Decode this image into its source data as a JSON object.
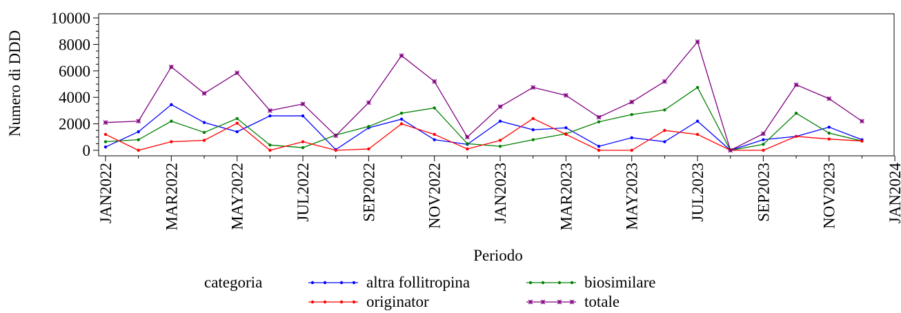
{
  "chart_data": {
    "type": "line",
    "xlabel": "Periodo",
    "ylabel": "Numero di DDD",
    "ylim": [
      0,
      10000
    ],
    "yticks": [
      0,
      2000,
      4000,
      6000,
      8000,
      10000
    ],
    "xticks": [
      "JAN2022",
      "MAR2022",
      "MAY2022",
      "JUL2022",
      "SEP2022",
      "NOV2022",
      "JAN2023",
      "MAR2023",
      "MAY2023",
      "JUL2023",
      "SEP2023",
      "NOV2023",
      "JAN2024"
    ],
    "x": [
      "JAN2022",
      "FEB2022",
      "MAR2022",
      "APR2022",
      "MAY2022",
      "JUN2022",
      "JUL2022",
      "AUG2022",
      "SEP2022",
      "OCT2022",
      "NOV2022",
      "DEC2022",
      "JAN2023",
      "FEB2023",
      "MAR2023",
      "APR2023",
      "MAY2023",
      "JUN2023",
      "JUL2023",
      "AUG2023",
      "SEP2023",
      "OCT2023",
      "NOV2023",
      "DEC2023"
    ],
    "legend_title": "categoria",
    "legend_position": "bottom",
    "series": [
      {
        "name": "altra follitropina",
        "color": "#0000ff",
        "marker": "dot",
        "values": [
          250,
          1400,
          3450,
          2100,
          1400,
          2600,
          2600,
          50,
          1700,
          2350,
          800,
          450,
          2200,
          1550,
          1700,
          300,
          950,
          650,
          2200,
          0,
          800,
          1050,
          1750,
          800
        ]
      },
      {
        "name": "biosimilare",
        "color": "#008000",
        "marker": "dot",
        "values": [
          650,
          800,
          2200,
          1350,
          2400,
          400,
          200,
          1150,
          1800,
          2800,
          3200,
          500,
          300,
          800,
          1250,
          2150,
          2700,
          3050,
          4750,
          0,
          450,
          2800,
          1300,
          700
        ]
      },
      {
        "name": "originator",
        "color": "#ff0000",
        "marker": "dot",
        "values": [
          1200,
          0,
          650,
          750,
          2050,
          0,
          650,
          0,
          100,
          2000,
          1200,
          100,
          750,
          2400,
          1200,
          0,
          0,
          1500,
          1200,
          0,
          0,
          1050,
          850,
          700
        ]
      },
      {
        "name": "totale",
        "color": "#800080",
        "marker": "star",
        "values": [
          2100,
          2200,
          6300,
          4300,
          5850,
          3000,
          3500,
          1100,
          3600,
          7150,
          5200,
          1000,
          3300,
          4750,
          4150,
          2500,
          3650,
          5200,
          8200,
          0,
          1250,
          4950,
          3900,
          2200
        ]
      }
    ]
  }
}
